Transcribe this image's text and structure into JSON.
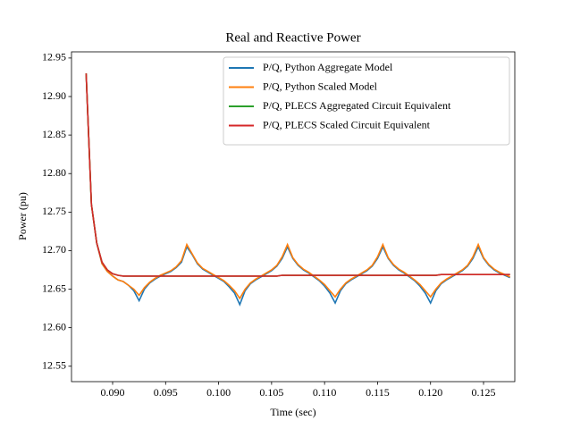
{
  "chart_data": {
    "type": "line",
    "title": "Real and Reactive Power",
    "xlabel": "Time (sec)",
    "ylabel": "Power (pu)",
    "x": [
      0.0875,
      0.088,
      0.0885,
      0.089,
      0.0895,
      0.09,
      0.0905,
      0.091,
      0.0915,
      0.092,
      0.0925,
      0.093,
      0.0935,
      0.094,
      0.0945,
      0.095,
      0.0955,
      0.096,
      0.0965,
      0.097,
      0.0975,
      0.098,
      0.0985,
      0.099,
      0.0995,
      0.1,
      0.1005,
      0.101,
      0.1015,
      0.102,
      0.1025,
      0.103,
      0.1035,
      0.104,
      0.1045,
      0.105,
      0.1055,
      0.106,
      0.1065,
      0.107,
      0.1075,
      0.108,
      0.1085,
      0.109,
      0.1095,
      0.11,
      0.1105,
      0.111,
      0.1115,
      0.112,
      0.1125,
      0.113,
      0.1135,
      0.114,
      0.1145,
      0.115,
      0.1155,
      0.116,
      0.1165,
      0.117,
      0.1175,
      0.118,
      0.1185,
      0.119,
      0.1195,
      0.12,
      0.1205,
      0.121,
      0.1215,
      0.122,
      0.1225,
      0.123,
      0.1235,
      0.124,
      0.1245,
      0.125,
      0.1255,
      0.126,
      0.1265,
      0.127,
      0.1275
    ],
    "series": [
      {
        "name": "P/Q, Python Aggregate Model",
        "color": "#1f77b4",
        "values": [
          12.93,
          12.76,
          12.71,
          12.683,
          12.673,
          12.667,
          12.662,
          12.66,
          12.655,
          12.648,
          12.635,
          12.65,
          12.658,
          12.663,
          12.667,
          12.67,
          12.673,
          12.678,
          12.685,
          12.705,
          12.695,
          12.683,
          12.676,
          12.672,
          12.668,
          12.664,
          12.66,
          12.653,
          12.645,
          12.63,
          12.648,
          12.657,
          12.662,
          12.666,
          12.67,
          12.674,
          12.68,
          12.69,
          12.705,
          12.69,
          12.681,
          12.675,
          12.671,
          12.666,
          12.661,
          12.654,
          12.645,
          12.632,
          12.648,
          12.657,
          12.662,
          12.666,
          12.67,
          12.674,
          12.68,
          12.69,
          12.705,
          12.69,
          12.681,
          12.675,
          12.671,
          12.666,
          12.661,
          12.654,
          12.645,
          12.632,
          12.648,
          12.657,
          12.662,
          12.666,
          12.67,
          12.674,
          12.68,
          12.69,
          12.705,
          12.69,
          12.681,
          12.675,
          12.671,
          12.668,
          12.665
        ]
      },
      {
        "name": "P/Q, Python Scaled Model",
        "color": "#ff7f0e",
        "values": [
          12.93,
          12.76,
          12.71,
          12.683,
          12.673,
          12.667,
          12.662,
          12.66,
          12.655,
          12.65,
          12.642,
          12.652,
          12.659,
          12.664,
          12.668,
          12.671,
          12.674,
          12.679,
          12.687,
          12.708,
          12.696,
          12.684,
          12.677,
          12.673,
          12.669,
          12.665,
          12.661,
          12.655,
          12.648,
          12.638,
          12.65,
          12.658,
          12.663,
          12.667,
          12.671,
          12.675,
          12.681,
          12.692,
          12.708,
          12.691,
          12.682,
          12.676,
          12.672,
          12.667,
          12.662,
          12.656,
          12.648,
          12.64,
          12.65,
          12.658,
          12.663,
          12.667,
          12.671,
          12.675,
          12.681,
          12.692,
          12.708,
          12.691,
          12.682,
          12.676,
          12.672,
          12.667,
          12.662,
          12.656,
          12.648,
          12.64,
          12.65,
          12.658,
          12.663,
          12.667,
          12.671,
          12.675,
          12.681,
          12.692,
          12.708,
          12.691,
          12.682,
          12.676,
          12.672,
          12.669,
          12.666
        ]
      },
      {
        "name": "P/Q, PLECS Aggregated Circuit Equivalent",
        "color": "#2ca02c",
        "values": [
          12.93,
          12.76,
          12.71,
          12.685,
          12.675,
          12.67,
          12.668,
          12.667,
          12.667,
          12.667,
          12.667,
          12.667,
          12.667,
          12.667,
          12.667,
          12.667,
          12.667,
          12.667,
          12.667,
          12.667,
          12.667,
          12.667,
          12.667,
          12.667,
          12.667,
          12.667,
          12.667,
          12.667,
          12.667,
          12.667,
          12.667,
          12.667,
          12.667,
          12.667,
          12.667,
          12.667,
          12.667,
          12.668,
          12.668,
          12.668,
          12.668,
          12.668,
          12.668,
          12.668,
          12.668,
          12.668,
          12.668,
          12.668,
          12.668,
          12.668,
          12.668,
          12.668,
          12.668,
          12.668,
          12.668,
          12.668,
          12.668,
          12.668,
          12.668,
          12.668,
          12.668,
          12.668,
          12.668,
          12.668,
          12.668,
          12.668,
          12.668,
          12.669,
          12.669,
          12.669,
          12.669,
          12.669,
          12.669,
          12.669,
          12.669,
          12.669,
          12.669,
          12.669,
          12.669,
          12.669,
          12.669
        ]
      },
      {
        "name": "P/Q, PLECS Scaled Circuit Equivalent",
        "color": "#d62728",
        "values": [
          12.93,
          12.76,
          12.71,
          12.685,
          12.675,
          12.67,
          12.668,
          12.667,
          12.667,
          12.667,
          12.667,
          12.667,
          12.667,
          12.667,
          12.667,
          12.667,
          12.667,
          12.667,
          12.667,
          12.667,
          12.667,
          12.667,
          12.667,
          12.667,
          12.667,
          12.667,
          12.667,
          12.667,
          12.667,
          12.667,
          12.667,
          12.667,
          12.667,
          12.667,
          12.667,
          12.667,
          12.667,
          12.668,
          12.668,
          12.668,
          12.668,
          12.668,
          12.668,
          12.668,
          12.668,
          12.668,
          12.668,
          12.668,
          12.668,
          12.668,
          12.668,
          12.668,
          12.668,
          12.668,
          12.668,
          12.668,
          12.668,
          12.668,
          12.668,
          12.668,
          12.668,
          12.668,
          12.668,
          12.668,
          12.668,
          12.668,
          12.668,
          12.669,
          12.669,
          12.669,
          12.669,
          12.669,
          12.669,
          12.669,
          12.669,
          12.669,
          12.669,
          12.669,
          12.669,
          12.669,
          12.669
        ]
      }
    ],
    "xlim": [
      0.08612,
      0.12795
    ],
    "ylim": [
      12.53,
      12.958
    ],
    "xticks": [
      {
        "value": 0.09,
        "label": "0.090"
      },
      0.095,
      {
        "value": 0.1,
        "label": "0.100"
      },
      0.105,
      {
        "value": 0.11,
        "label": "0.110"
      },
      0.115,
      {
        "value": 0.12,
        "label": "0.120"
      },
      0.125
    ],
    "yticks": [
      12.55,
      {
        "value": 12.6,
        "label": "12.60"
      },
      12.65,
      {
        "value": 12.7,
        "label": "12.70"
      },
      12.75,
      {
        "value": 12.8,
        "label": "12.80"
      },
      12.85,
      {
        "value": 12.9,
        "label": "12.90"
      },
      12.95
    ],
    "grid": false,
    "legend": "upper right"
  }
}
